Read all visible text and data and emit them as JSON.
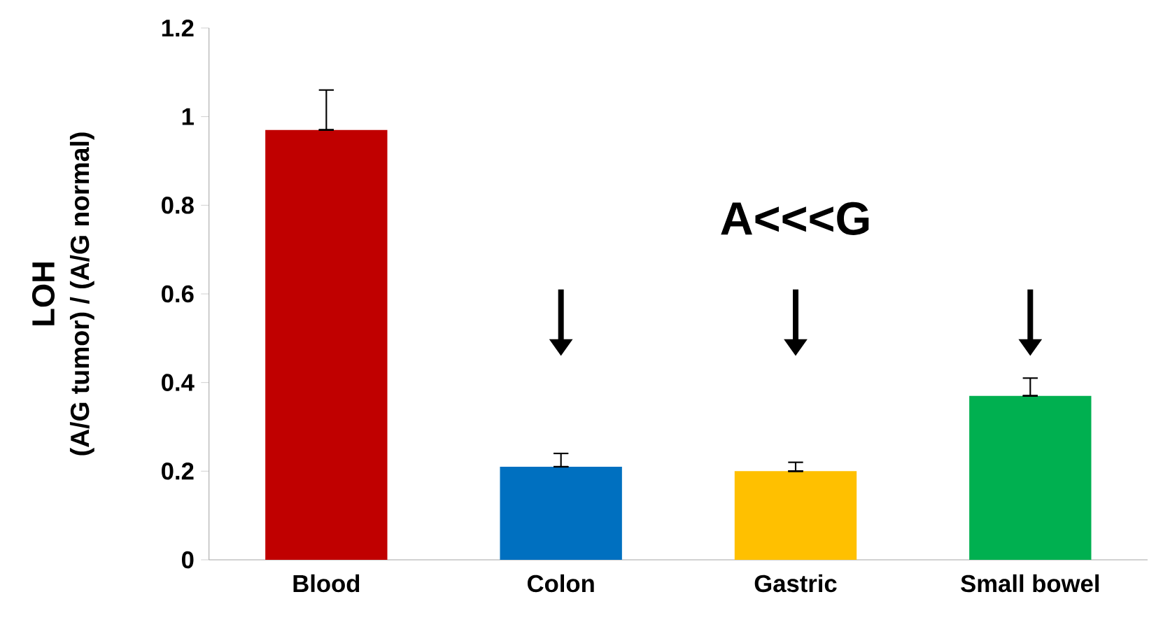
{
  "chart_data": {
    "type": "bar",
    "categories": [
      "Blood",
      "Colon",
      "Gastric",
      "Small bowel"
    ],
    "values": [
      0.97,
      0.21,
      0.2,
      0.37
    ],
    "colors": [
      "#c00000",
      "#0070c0",
      "#ffc000",
      "#00b050"
    ],
    "errors": [
      [
        0.97,
        1.06
      ],
      [
        0.21,
        0.24
      ],
      [
        0.2,
        0.22
      ],
      [
        0.37,
        0.41
      ]
    ],
    "ylabel": "LOH",
    "ylim": [
      0,
      1.2
    ],
    "yticks": [
      0,
      0.2,
      0.4,
      0.6,
      0.8,
      1,
      1.2
    ],
    "annotations": [
      "(A/G tumor) / (A/G normal)",
      "A<<<G"
    ],
    "grid": false
  }
}
